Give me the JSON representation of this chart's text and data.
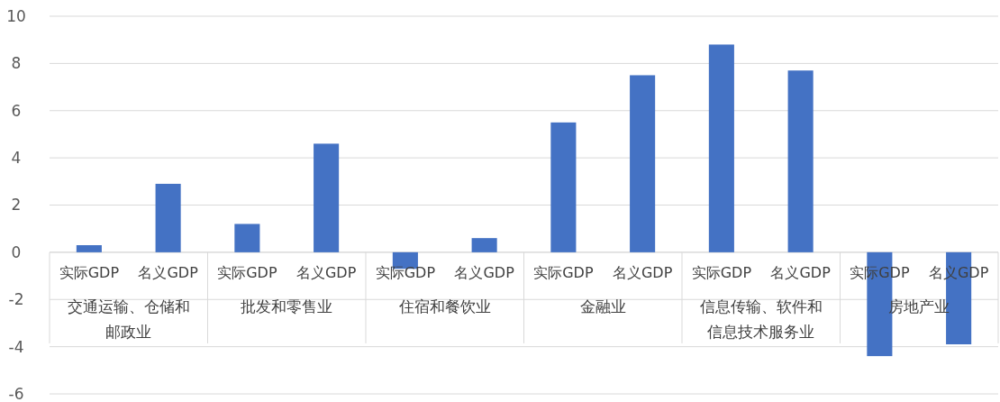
{
  "chart_data": {
    "type": "bar",
    "categories": [
      "实际GDP",
      "名义GDP",
      "实际GDP",
      "名义GDP",
      "实际GDP",
      "名义GDP",
      "实际GDP",
      "名义GDP",
      "实际GDP",
      "名义GDP",
      "实际GDP",
      "名义GDP"
    ],
    "values": [
      0.3,
      2.9,
      1.2,
      4.6,
      -0.7,
      0.6,
      5.5,
      7.5,
      8.8,
      7.7,
      -4.4,
      -3.9
    ],
    "color": "#4472c4",
    "ylim": [
      -6,
      10
    ],
    "yticks": [
      -6,
      -4,
      -2,
      0,
      2,
      4,
      6,
      8,
      10
    ],
    "grid": "y",
    "annotations": [
      "交通运输、仓储和邮政业",
      "批发和零售业",
      "住宿和餐饮业",
      "金融业",
      "信息传输、软件和信息技术服务业",
      "房地产业"
    ]
  }
}
